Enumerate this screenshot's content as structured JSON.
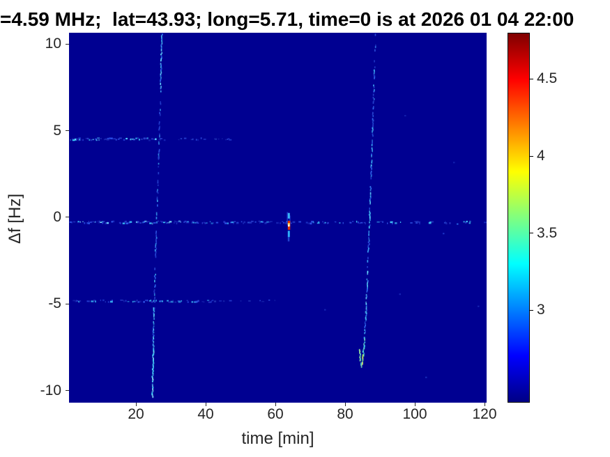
{
  "chart_data": {
    "type": "heatmap",
    "title": "=4.59 MHz;  lat=43.93; long=5.71, time=0 is at 2026 01 04 22:00",
    "xlabel": "time [min]",
    "ylabel": "Δf [Hz]",
    "x_ticks": [
      20,
      40,
      60,
      80,
      100,
      120
    ],
    "y_ticks": [
      10,
      5,
      0,
      -5,
      -10
    ],
    "xlim": [
      0.8,
      120.6
    ],
    "ylim": [
      -10.7,
      10.65
    ],
    "background_value_color": "#000091",
    "grid": false,
    "colorbar": {
      "ticks": [
        3,
        3.5,
        4,
        4.5
      ],
      "lim": [
        2.4,
        4.8
      ],
      "stops": [
        {
          "pos": 0.0,
          "color": "#000085"
        },
        {
          "pos": 0.125,
          "color": "#0000ff"
        },
        {
          "pos": 0.375,
          "color": "#00ffff"
        },
        {
          "pos": 0.625,
          "color": "#ffff00"
        },
        {
          "pos": 0.875,
          "color": "#ff0000"
        },
        {
          "pos": 1.0,
          "color": "#7f0000"
        }
      ]
    },
    "horizontal_lines": [
      {
        "df": 4.55,
        "t0": 1,
        "t1": 27,
        "density": 0.6,
        "palette": [
          "#1e2fb8",
          "#2c50e8",
          "#38c8f8",
          "#59d8ff",
          "#2a3fd0"
        ]
      },
      {
        "df": 4.55,
        "t0": 27,
        "t1": 47,
        "density": 0.22,
        "palette": [
          "#1c2cb0",
          "#2a46d8"
        ]
      },
      {
        "df": -0.25,
        "t0": 1,
        "t1": 33,
        "density": 0.72,
        "palette": [
          "#2238c8",
          "#2f5df0",
          "#3ecfff",
          "#7ae4ff",
          "#2a3fd0"
        ]
      },
      {
        "df": -0.25,
        "t0": 33,
        "t1": 75,
        "density": 0.55,
        "palette": [
          "#2136c4",
          "#2d55e8",
          "#38b8f8",
          "#2a3fd0"
        ]
      },
      {
        "df": -0.25,
        "t0": 75,
        "t1": 120.4,
        "density": 0.34,
        "palette": [
          "#1f31bb",
          "#2c50e0",
          "#41c8f8"
        ]
      },
      {
        "df": -4.8,
        "t0": 1,
        "t1": 42,
        "density": 0.38,
        "palette": [
          "#1e2fb8",
          "#2b4ce0",
          "#37b0f0"
        ]
      },
      {
        "df": -4.8,
        "t0": 42,
        "t1": 62,
        "density": 0.18,
        "palette": [
          "#1c2cb0",
          "#2a46d8"
        ]
      }
    ],
    "traces": [
      {
        "name": "doppler-trace-1",
        "segments": [
          {
            "p": [
              [
                27.3,
                10.6
              ],
              [
                26.9,
                7.5
              ]
            ],
            "density": 0.85,
            "colors": [
              "#42c8f8",
              "#2d6af0",
              "#64dcff"
            ]
          },
          {
            "p": [
              [
                26.9,
                7.5
              ],
              [
                26.35,
                3.5
              ]
            ],
            "density": 0.55,
            "colors": [
              "#2b50e0",
              "#3a9cf0",
              "#2440cc"
            ]
          },
          {
            "p": [
              [
                26.35,
                3.5
              ],
              [
                25.85,
                0.3
              ]
            ],
            "density": 0.6,
            "colors": [
              "#2d62e8",
              "#3fb4f4",
              "#2440cc"
            ]
          },
          {
            "p": [
              [
                25.85,
                0.3
              ],
              [
                25.45,
                -2.2
              ]
            ],
            "density": 0.6,
            "colors": [
              "#2b50e0",
              "#38a0f0"
            ]
          },
          {
            "p": [
              [
                25.45,
                -2.2
              ],
              [
                25.05,
                -5.2
              ]
            ],
            "density": 0.55,
            "colors": [
              "#2d62e8",
              "#44c0f6",
              "#2440cc"
            ]
          },
          {
            "p": [
              [
                25.05,
                -5.2
              ],
              [
                24.8,
                -7.3
              ]
            ],
            "density": 0.7,
            "colors": [
              "#3fc0f6",
              "#2d62e8",
              "#58d8ff"
            ]
          },
          {
            "p": [
              [
                24.8,
                -7.3
              ],
              [
                24.55,
                -10.3
              ]
            ],
            "density": 0.92,
            "w": 2,
            "colors": [
              "#55e0ff",
              "#3fd0f8",
              "#8ceefb",
              "#46b8f0"
            ]
          }
        ]
      },
      {
        "name": "doppler-trace-2",
        "segments": [
          {
            "p": [
              [
                88.65,
                10.6
              ],
              [
                88.35,
                8.8
              ]
            ],
            "density": 0.5,
            "colors": [
              "#2a4ad8",
              "#3a88f0"
            ]
          },
          {
            "p": [
              [
                88.35,
                8.8
              ],
              [
                87.75,
                5.2
              ]
            ],
            "density": 0.6,
            "colors": [
              "#2d62e8",
              "#3fb0f4",
              "#2745d0"
            ]
          },
          {
            "p": [
              [
                87.75,
                5.2
              ],
              [
                87.15,
                1.8
              ]
            ],
            "density": 0.68,
            "colors": [
              "#38a8f2",
              "#2d62e8",
              "#4fd0ff"
            ]
          },
          {
            "p": [
              [
                87.15,
                1.8
              ],
              [
                86.8,
                -0.5
              ]
            ],
            "density": 0.8,
            "colors": [
              "#44c6f8",
              "#2f6cf0",
              "#63dcff"
            ]
          },
          {
            "p": [
              [
                86.8,
                -0.5
              ],
              [
                86.35,
                -3.0
              ]
            ],
            "density": 0.5,
            "colors": [
              "#2b50e0",
              "#389cf0"
            ]
          },
          {
            "p": [
              [
                86.35,
                -3.0
              ],
              [
                85.85,
                -5.4
              ]
            ],
            "density": 0.8,
            "colors": [
              "#48ccf8",
              "#2f6cf0",
              "#6be0ff"
            ]
          },
          {
            "p": [
              [
                85.85,
                -5.4
              ],
              [
                85.45,
                -6.9
              ]
            ],
            "density": 0.6,
            "colors": [
              "#2d62e8",
              "#40b8f4"
            ]
          },
          {
            "p": [
              [
                85.45,
                -6.9
              ],
              [
                85.05,
                -7.9
              ]
            ],
            "density": 0.9,
            "w": 2,
            "colors": [
              "#57e6e2",
              "#45d4f0",
              "#7df2c8"
            ]
          },
          {
            "p": [
              [
                85.05,
                -7.9
              ],
              [
                84.45,
                -8.55
              ]
            ],
            "density": 0.95,
            "w": 2.2,
            "colors": [
              "#aef261",
              "#d6f53c",
              "#7cf08a",
              "#eaf76a"
            ]
          },
          {
            "p": [
              [
                84.45,
                -8.55
              ],
              [
                83.95,
                -7.6
              ]
            ],
            "density": 0.85,
            "w": 1.8,
            "colors": [
              "#79eec0",
              "#55e0d8",
              "#a0f19a"
            ]
          }
        ]
      }
    ],
    "event_marks": [
      {
        "t": 63.25,
        "df": 0.3,
        "w": 2,
        "h": 18,
        "color": "#2244dd",
        "opacity": 0.65
      },
      {
        "t": 63.95,
        "df": 0.1,
        "w": 2,
        "h": 16,
        "color": "#2244dd",
        "opacity": 0.6
      },
      {
        "t": 63.55,
        "df": 0.25,
        "w": 3,
        "h": 8,
        "color": "#3fc8ff",
        "opacity": 0.9
      },
      {
        "t": 63.55,
        "df": -0.2,
        "w": 3.5,
        "h": 13,
        "color": "#e03000",
        "opacity": 1
      },
      {
        "t": 63.55,
        "df": -0.33,
        "w": 3,
        "h": 4,
        "color": "#ffd040",
        "opacity": 1
      },
      {
        "t": 63.6,
        "df": -0.42,
        "w": 2.5,
        "h": 3,
        "color": "#fffbe0",
        "opacity": 1
      },
      {
        "t": 63.55,
        "df": -0.78,
        "w": 3,
        "h": 9,
        "color": "#30b8ff",
        "opacity": 0.95
      },
      {
        "t": 63.55,
        "df": -1.15,
        "w": 2.5,
        "h": 6,
        "color": "#2a55e0",
        "opacity": 0.8
      }
    ],
    "stray_dots": [
      {
        "t": 74,
        "df": -5.3,
        "color": "#2440cc",
        "opacity": 0.6
      },
      {
        "t": 95.5,
        "df": -4.4,
        "color": "#2440cc",
        "opacity": 0.6
      },
      {
        "t": 103,
        "df": -9.2,
        "color": "#2747d2",
        "opacity": 0.6
      },
      {
        "t": 111,
        "df": 3.2,
        "color": "#2440cc",
        "opacity": 0.5
      },
      {
        "t": 118,
        "df": -5.1,
        "color": "#2440cc",
        "opacity": 0.55
      },
      {
        "t": 97,
        "df": 5.9,
        "color": "#2440cc",
        "opacity": 0.5
      },
      {
        "t": 108,
        "df": -0.9,
        "color": "#2d55e8",
        "opacity": 0.6
      },
      {
        "t": 115.5,
        "df": -0.3,
        "color": "#39c4f0",
        "opacity": 0.8
      },
      {
        "t": 112,
        "df": -0.35,
        "color": "#3388ff",
        "opacity": 0.7
      }
    ]
  },
  "layout_text": {
    "tick_color": "#262626"
  }
}
